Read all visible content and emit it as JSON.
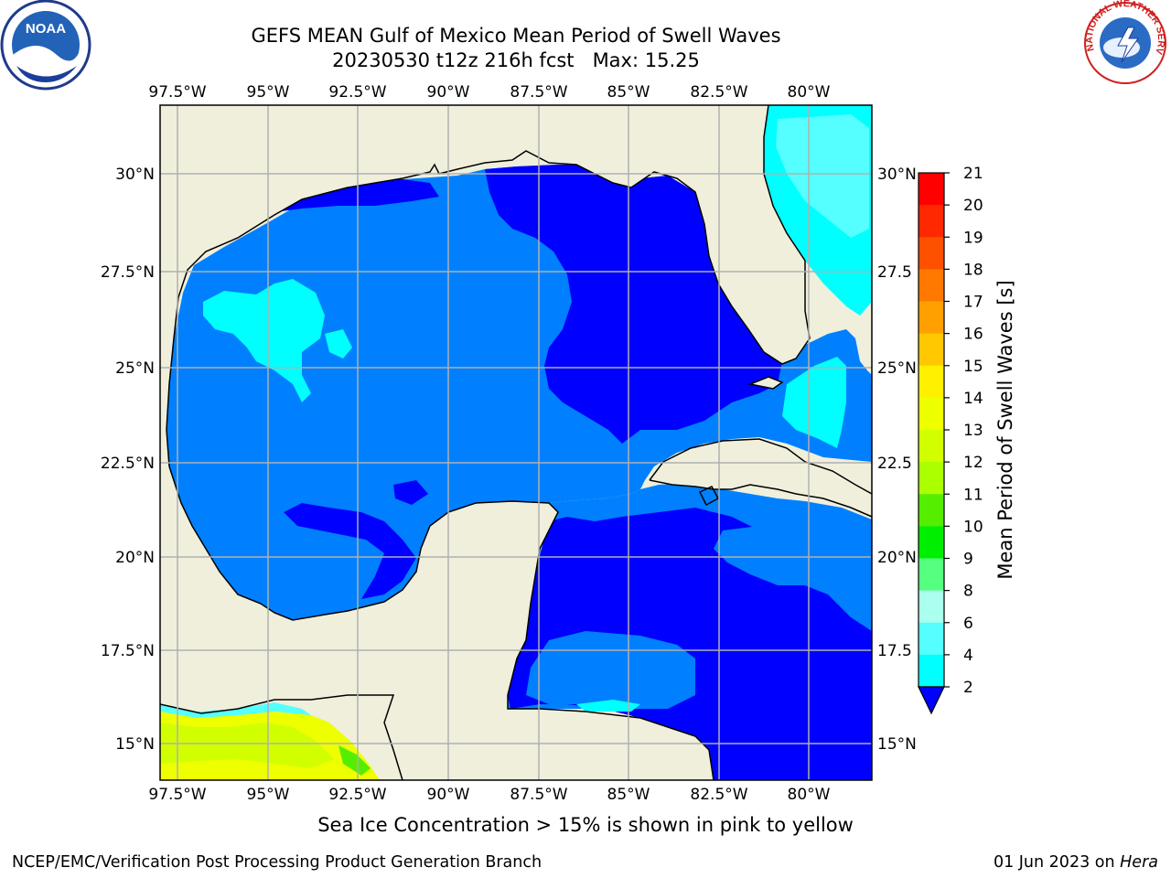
{
  "title": "GEFS MEAN Gulf of Mexico Mean Period of Swell Waves",
  "subtitle": "20230530 t12z 216h fcst   Max: 15.25",
  "footer_note": "Sea Ice Concentration > 15% is shown in pink to yellow",
  "credit_left": "NCEP/EMC/Verification Post Processing Product Generation Branch",
  "credit_date": "01 Jun 2023 on ",
  "credit_host": "Hera",
  "logos": {
    "left": "noaa-logo",
    "right": "nws-logo",
    "noaa_text": "NOAA",
    "nws_text": "NATIONAL WEATHER SERVICE"
  },
  "map": {
    "lon_ticks_top": [
      "97.5°W",
      "95°W",
      "92.5°W",
      "90°W",
      "87.5°W",
      "85°W",
      "82.5°W",
      "80°W"
    ],
    "lon_ticks_bottom": [
      "97.5°W",
      "95°W",
      "92.5°W",
      "90°W",
      "87.5°W",
      "85°W",
      "82.5°W",
      "80°W"
    ],
    "lat_ticks_left": [
      "30°N",
      "27.5°N",
      "25°N",
      "22.5°N",
      "20°N",
      "17.5°N",
      "15°N"
    ],
    "lat_ticks_right": [
      "30°N",
      "27.5",
      "25°N",
      "22.5",
      "20°N",
      "17.5",
      "15°N"
    ]
  },
  "colorbar": {
    "label": "Mean Period of Swell Waves [s]",
    "ticks": [
      "21",
      "20",
      "19",
      "18",
      "17",
      "16",
      "15",
      "14",
      "13",
      "12",
      "11",
      "10",
      "9",
      "8",
      "6",
      "4",
      "2"
    ],
    "colors": [
      "#ff0000",
      "#ff2800",
      "#ff5000",
      "#ff7800",
      "#ffa000",
      "#ffc800",
      "#fff000",
      "#eeff00",
      "#d2ff00",
      "#aaff00",
      "#55ee00",
      "#00ee00",
      "#55ff80",
      "#aaffee",
      "#55ffff",
      "#00ffff",
      "#00e0ff",
      "#0080ff",
      "#0000ff"
    ],
    "under_color": "#0000ff"
  },
  "colors": {
    "land": "#efefdc",
    "deep_blue": "#0000ff",
    "mid_blue": "#0080ff",
    "cyan": "#00ffff",
    "light_cyan": "#55ffff",
    "grid": "#b0b0b0"
  }
}
